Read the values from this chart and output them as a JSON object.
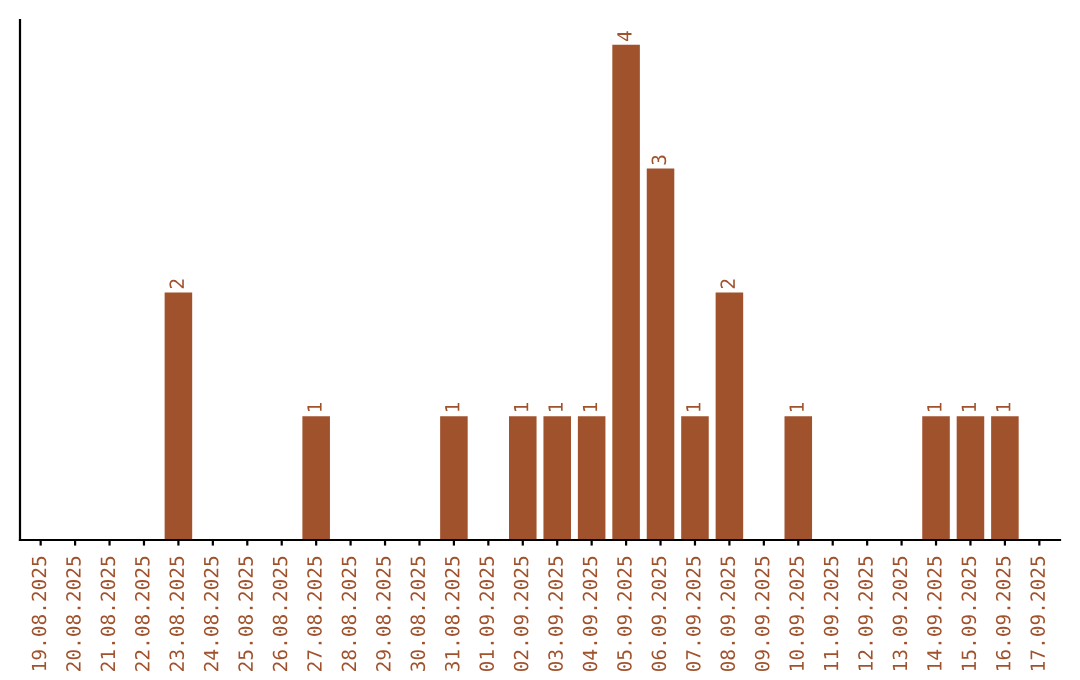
{
  "chart_data": {
    "type": "bar",
    "categories": [
      "19.08.2025",
      "20.08.2025",
      "21.08.2025",
      "22.08.2025",
      "23.08.2025",
      "24.08.2025",
      "25.08.2025",
      "26.08.2025",
      "27.08.2025",
      "28.08.2025",
      "29.08.2025",
      "30.08.2025",
      "31.08.2025",
      "01.09.2025",
      "02.09.2025",
      "03.09.2025",
      "04.09.2025",
      "05.09.2025",
      "06.09.2025",
      "07.09.2025",
      "08.09.2025",
      "09.09.2025",
      "10.09.2025",
      "11.09.2025",
      "12.09.2025",
      "13.09.2025",
      "14.09.2025",
      "15.09.2025",
      "16.09.2025",
      "17.09.2025"
    ],
    "values": [
      0,
      0,
      0,
      0,
      2,
      0,
      0,
      0,
      1,
      0,
      0,
      0,
      1,
      0,
      1,
      1,
      1,
      4,
      3,
      1,
      2,
      0,
      1,
      0,
      0,
      0,
      1,
      1,
      1,
      0
    ],
    "value_labels": [
      null,
      null,
      null,
      null,
      "2",
      null,
      null,
      null,
      "1",
      null,
      null,
      null,
      "1",
      null,
      "1",
      "1",
      "1",
      "4",
      "3",
      "1",
      "2",
      null,
      "1",
      null,
      null,
      null,
      "1",
      "1",
      "1",
      null
    ],
    "color": "#a0522d",
    "tick_labels": "x",
    "grid": false
  }
}
